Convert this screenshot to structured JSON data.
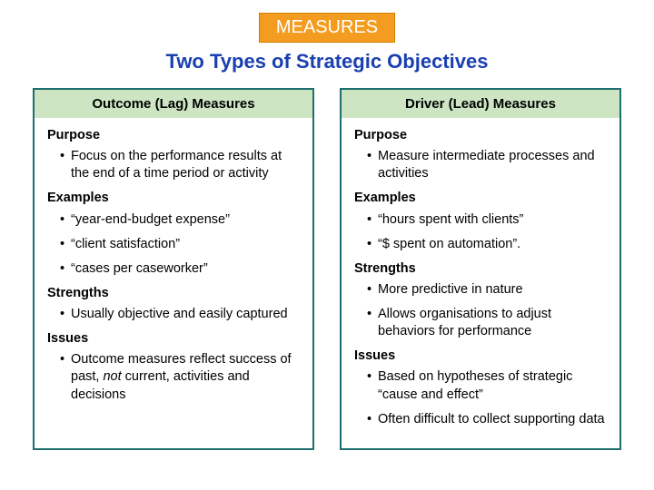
{
  "badge": {
    "text": "MEASURES",
    "bg": "#f39c1f",
    "border": "#d17f00",
    "color": "#ffffff"
  },
  "title": {
    "text": "Two Types of Strategic Objectives",
    "color": "#1a3fb0"
  },
  "column_border": "#1f6e6e",
  "head_bg": "#cde5c3",
  "left": {
    "heading": "Outcome (Lag) Measures",
    "purpose_label": "Purpose",
    "purpose_items": [
      "Focus on the performance results at the end of a time period or activity"
    ],
    "examples_label": "Examples",
    "examples_items": [
      "“year-end-budget expense”",
      "“client satisfaction”",
      "“cases per caseworker”"
    ],
    "strengths_label": "Strengths",
    "strengths_items": [
      "Usually objective and easily captured"
    ],
    "issues_label": "Issues",
    "issues_html": "Outcome measures reflect success of past, <span class=\"ital\">not</span> current, activities and decisions"
  },
  "right": {
    "heading": "Driver (Lead) Measures",
    "purpose_label": "Purpose",
    "purpose_items": [
      "Measure intermediate processes and activities"
    ],
    "examples_label": "Examples",
    "examples_items": [
      "“hours spent with clients”",
      "“$ spent on automation”."
    ],
    "strengths_label": "Strengths",
    "strengths_items": [
      "More predictive in nature",
      "Allows organisations to adjust behaviors for performance"
    ],
    "issues_label": "Issues",
    "issues_items": [
      "Based on hypotheses of strategic “cause and effect”",
      "Often difficult to collect supporting data"
    ]
  }
}
